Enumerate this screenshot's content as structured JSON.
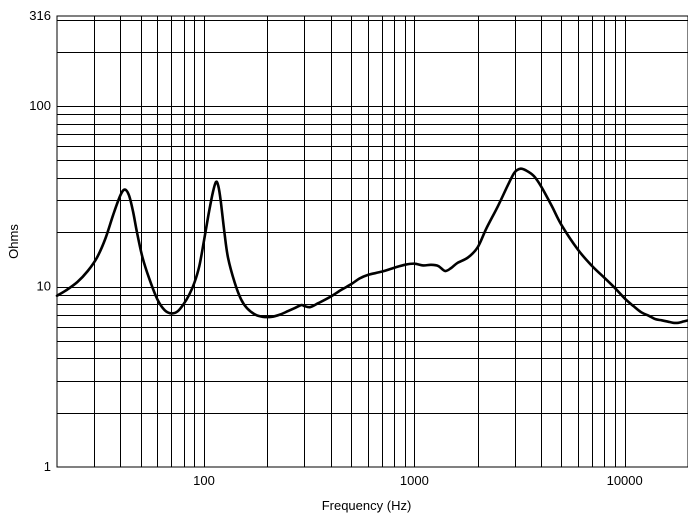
{
  "chart_data": {
    "type": "line",
    "title": "",
    "xlabel": "Frequency (Hz)",
    "ylabel": "Ohms",
    "xscale": "log",
    "yscale": "log",
    "xlim": [
      20,
      20000
    ],
    "ylim": [
      1,
      316
    ],
    "grid": true,
    "x_ticks": [
      {
        "value": 100,
        "label": "100"
      },
      {
        "value": 1000,
        "label": "1000"
      },
      {
        "value": 10000,
        "label": "10000"
      }
    ],
    "y_ticks": [
      {
        "value": 1,
        "label": "1"
      },
      {
        "value": 10,
        "label": "10"
      },
      {
        "value": 100,
        "label": "100"
      },
      {
        "value": 316,
        "label": "316"
      }
    ],
    "series": [
      {
        "name": "",
        "x": [
          20,
          22,
          25,
          28,
          31,
          34,
          37,
          40,
          42,
          44,
          46,
          48,
          51,
          55,
          60,
          65,
          70,
          75,
          80,
          85,
          90,
          95,
          100,
          105,
          110,
          114,
          117,
          120,
          125,
          130,
          140,
          150,
          160,
          175,
          190,
          210,
          230,
          250,
          270,
          290,
          300,
          320,
          350,
          400,
          450,
          500,
          550,
          600,
          700,
          800,
          900,
          1000,
          1100,
          1200,
          1300,
          1400,
          1500,
          1600,
          1800,
          2000,
          2200,
          2500,
          2800,
          3000,
          3200,
          3400,
          3700,
          4000,
          4500,
          5000,
          6000,
          7000,
          8000,
          9000,
          10000,
          11000,
          12000,
          13000,
          14000,
          15000,
          16000,
          17000,
          18000,
          19000,
          20000
        ],
        "y": [
          8.9,
          9.5,
          10.6,
          12.2,
          14.5,
          18.5,
          25,
          32,
          34.5,
          32,
          26,
          20,
          14.5,
          11,
          8.5,
          7.4,
          7.1,
          7.3,
          8.0,
          9.0,
          10.5,
          13,
          18,
          25,
          33,
          38,
          36,
          30,
          20,
          14.5,
          10.5,
          8.5,
          7.6,
          7.0,
          6.8,
          6.8,
          7.0,
          7.3,
          7.6,
          7.9,
          7.8,
          7.7,
          8.1,
          8.8,
          9.6,
          10.3,
          11.1,
          11.6,
          12.1,
          12.7,
          13.2,
          13.4,
          13.1,
          13.2,
          13.0,
          12.2,
          12.7,
          13.5,
          14.5,
          16.5,
          21,
          28,
          37,
          43,
          45,
          44,
          41,
          36,
          28,
          22,
          16,
          13,
          11.2,
          9.8,
          8.6,
          7.8,
          7.2,
          6.9,
          6.6,
          6.5,
          6.4,
          6.3,
          6.3,
          6.4,
          6.5
        ]
      }
    ]
  }
}
